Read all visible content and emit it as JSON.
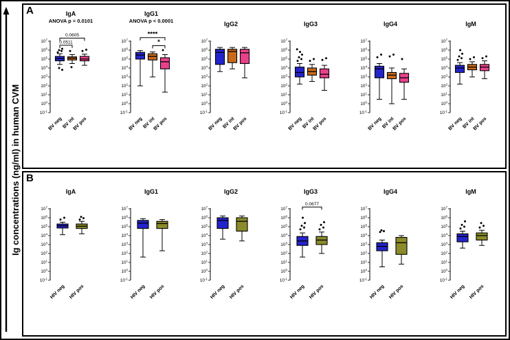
{
  "chart_data": {
    "type": "box",
    "y_scale": "log10",
    "y_axis_label": "Ig concentrations (ng/ml) in human CVM",
    "y_tick_exponents": [
      7,
      6,
      5,
      4,
      3,
      2,
      1,
      0,
      -1
    ],
    "panels": [
      {
        "label": "A",
        "groups": [
          "BV neg",
          "BV int",
          "BV pos"
        ],
        "colors": [
          "#2424cb",
          "#c96a1d",
          "#e8418c"
        ],
        "subplots": [
          {
            "title": "IgA",
            "anova": "ANOVA p = 0.0101",
            "brackets": [
              {
                "from": 0,
                "to": 2,
                "y": 7.35,
                "label": "0.0605",
                "star": false
              },
              {
                "from": 0,
                "to": 1,
                "y": 6.55,
                "label": "0.0511",
                "star": false
              }
            ],
            "boxes": [
              {
                "lo": 4.4,
                "q1": 4.8,
                "med": 5.05,
                "q3": 5.3,
                "hi": 5.6,
                "out_hi": [
                  5.75,
                  5.9,
                  6.0,
                  6.15
                ],
                "out_lo": [
                  4.0,
                  3.8
                ]
              },
              {
                "lo": 4.5,
                "q1": 4.9,
                "med": 5.1,
                "q3": 5.25,
                "hi": 5.5,
                "out_hi": [
                  5.9
                ],
                "out_lo": [
                  4.1
                ]
              },
              {
                "lo": 4.3,
                "q1": 4.8,
                "med": 5.0,
                "q3": 5.3,
                "hi": 5.55,
                "out_hi": [
                  5.9,
                  6.05
                ],
                "out_lo": []
              }
            ]
          },
          {
            "title": "IgG1",
            "anova": "ANOVA p < 0.0001",
            "brackets": [
              {
                "from": 0,
                "to": 2,
                "y": 7.4,
                "label": "****",
                "star": true
              },
              {
                "from": 1,
                "to": 2,
                "y": 6.5,
                "label": "*",
                "star": true
              }
            ],
            "boxes": [
              {
                "lo": 2.0,
                "q1": 5.0,
                "med": 5.45,
                "q3": 5.75,
                "hi": 5.95,
                "out_hi": [],
                "out_lo": []
              },
              {
                "lo": 3.0,
                "q1": 4.9,
                "med": 5.3,
                "q3": 5.6,
                "hi": 5.8,
                "out_hi": [],
                "out_lo": []
              },
              {
                "lo": 1.3,
                "q1": 3.9,
                "med": 4.7,
                "q3": 5.15,
                "hi": 5.5,
                "out_hi": [
                  6.0
                ],
                "out_lo": []
              }
            ]
          },
          {
            "title": "IgG2",
            "anova": "",
            "brackets": [],
            "boxes": [
              {
                "lo": 3.6,
                "q1": 4.4,
                "med": 5.75,
                "q3": 6.1,
                "hi": 6.3,
                "out_hi": [],
                "out_lo": []
              },
              {
                "lo": 3.9,
                "q1": 4.6,
                "med": 5.85,
                "q3": 6.1,
                "hi": 6.3,
                "out_hi": [],
                "out_lo": []
              },
              {
                "lo": 2.9,
                "q1": 4.5,
                "med": 5.7,
                "q3": 6.1,
                "hi": 6.3,
                "out_hi": [],
                "out_lo": []
              }
            ]
          },
          {
            "title": "IgG3",
            "anova": "",
            "brackets": [],
            "boxes": [
              {
                "lo": 2.2,
                "q1": 3.0,
                "med": 3.5,
                "q3": 4.1,
                "hi": 4.5,
                "out_hi": [
                  4.8,
                  5.0,
                  5.2,
                  5.5,
                  5.8,
                  6.1
                ],
                "out_lo": []
              },
              {
                "lo": 2.5,
                "q1": 3.2,
                "med": 3.6,
                "q3": 4.0,
                "hi": 4.4,
                "out_hi": [
                  4.8,
                  5.0
                ],
                "out_lo": []
              },
              {
                "lo": 1.5,
                "q1": 2.9,
                "med": 3.3,
                "q3": 3.9,
                "hi": 4.3,
                "out_hi": [
                  4.9,
                  5.1
                ],
                "out_lo": []
              }
            ]
          },
          {
            "title": "IgG4",
            "anova": "",
            "brackets": [],
            "boxes": [
              {
                "lo": 0.5,
                "q1": 2.9,
                "med": 3.9,
                "q3": 4.2,
                "hi": 4.5,
                "out_hi": [
                  5.2,
                  5.5
                ],
                "out_lo": []
              },
              {
                "lo": 0.0,
                "q1": 2.8,
                "med": 3.2,
                "q3": 3.5,
                "hi": 4.0,
                "out_hi": [
                  5.3,
                  5.5
                ],
                "out_lo": []
              },
              {
                "lo": 0.5,
                "q1": 2.4,
                "med": 2.9,
                "q3": 3.4,
                "hi": 3.9,
                "out_hi": [
                  5.0
                ],
                "out_lo": []
              }
            ]
          },
          {
            "title": "IgM",
            "anova": "",
            "brackets": [],
            "boxes": [
              {
                "lo": 2.2,
                "q1": 3.5,
                "med": 4.0,
                "q3": 4.3,
                "hi": 4.6,
                "out_hi": [
                  4.9,
                  5.1,
                  5.3,
                  5.6,
                  6.0
                ],
                "out_lo": []
              },
              {
                "lo": 3.0,
                "q1": 3.8,
                "med": 4.1,
                "q3": 4.4,
                "hi": 4.7,
                "out_hi": [
                  5.0,
                  5.2
                ],
                "out_lo": []
              },
              {
                "lo": 2.8,
                "q1": 3.7,
                "med": 4.1,
                "q3": 4.4,
                "hi": 4.8,
                "out_hi": [
                  5.1,
                  5.3
                ],
                "out_lo": []
              }
            ]
          }
        ]
      },
      {
        "label": "B",
        "groups": [
          "HIV neg",
          "HIV pos"
        ],
        "colors": [
          "#2424cb",
          "#8b8b2b"
        ],
        "subplots": [
          {
            "title": "IgA",
            "anova": "",
            "brackets": [],
            "boxes": [
              {
                "lo": 4.1,
                "q1": 4.85,
                "med": 5.1,
                "q3": 5.3,
                "hi": 5.5,
                "out_hi": [
                  5.8,
                  6.0
                ],
                "out_lo": []
              },
              {
                "lo": 4.2,
                "q1": 4.8,
                "med": 5.05,
                "q3": 5.3,
                "hi": 5.6,
                "out_hi": [
                  5.8,
                  5.95,
                  6.1
                ],
                "out_lo": []
              }
            ]
          },
          {
            "title": "IgG1",
            "anova": "",
            "brackets": [],
            "boxes": [
              {
                "lo": 1.6,
                "q1": 4.8,
                "med": 5.4,
                "q3": 5.7,
                "hi": 5.9,
                "out_hi": [],
                "out_lo": []
              },
              {
                "lo": 2.3,
                "q1": 4.8,
                "med": 5.35,
                "q3": 5.6,
                "hi": 5.8,
                "out_hi": [],
                "out_lo": []
              }
            ]
          },
          {
            "title": "IgG2",
            "anova": "",
            "brackets": [],
            "boxes": [
              {
                "lo": 3.6,
                "q1": 4.8,
                "med": 5.7,
                "q3": 6.0,
                "hi": 6.2,
                "out_hi": [],
                "out_lo": []
              },
              {
                "lo": 3.4,
                "q1": 4.5,
                "med": 5.6,
                "q3": 6.0,
                "hi": 6.2,
                "out_hi": [],
                "out_lo": []
              }
            ]
          },
          {
            "title": "IgG3",
            "anova": "",
            "brackets": [
              {
                "from": 0,
                "to": 1,
                "y": 7.2,
                "label": "0.0677",
                "star": false
              }
            ],
            "boxes": [
              {
                "lo": 1.6,
                "q1": 2.9,
                "med": 3.4,
                "q3": 3.9,
                "hi": 4.3,
                "out_hi": [
                  4.7,
                  4.9,
                  5.1,
                  5.4,
                  6.0
                ],
                "out_lo": []
              },
              {
                "lo": 2.0,
                "q1": 3.0,
                "med": 3.5,
                "q3": 3.9,
                "hi": 4.4,
                "out_hi": [
                  4.7,
                  4.9,
                  5.2,
                  5.5
                ],
                "out_lo": []
              }
            ]
          },
          {
            "title": "IgG4",
            "anova": "",
            "brackets": [],
            "boxes": [
              {
                "lo": 0.5,
                "q1": 2.3,
                "med": 2.8,
                "q3": 3.2,
                "hi": 3.5,
                "out_hi": [
                  4.4,
                  4.5,
                  4.6
                ],
                "out_lo": []
              },
              {
                "lo": 0.8,
                "q1": 1.9,
                "med": 3.2,
                "q3": 3.8,
                "hi": 4.0,
                "out_hi": [],
                "out_lo": []
              }
            ]
          },
          {
            "title": "IgM",
            "anova": "",
            "brackets": [],
            "boxes": [
              {
                "lo": 2.6,
                "q1": 3.3,
                "med": 3.9,
                "q3": 4.2,
                "hi": 4.5,
                "out_hi": [
                  4.8,
                  5.0,
                  5.2,
                  5.6
                ],
                "out_lo": []
              },
              {
                "lo": 2.9,
                "q1": 3.5,
                "med": 4.0,
                "q3": 4.3,
                "hi": 4.6,
                "out_hi": [
                  4.9,
                  5.1,
                  5.4
                ],
                "out_lo": []
              }
            ]
          }
        ]
      }
    ]
  }
}
